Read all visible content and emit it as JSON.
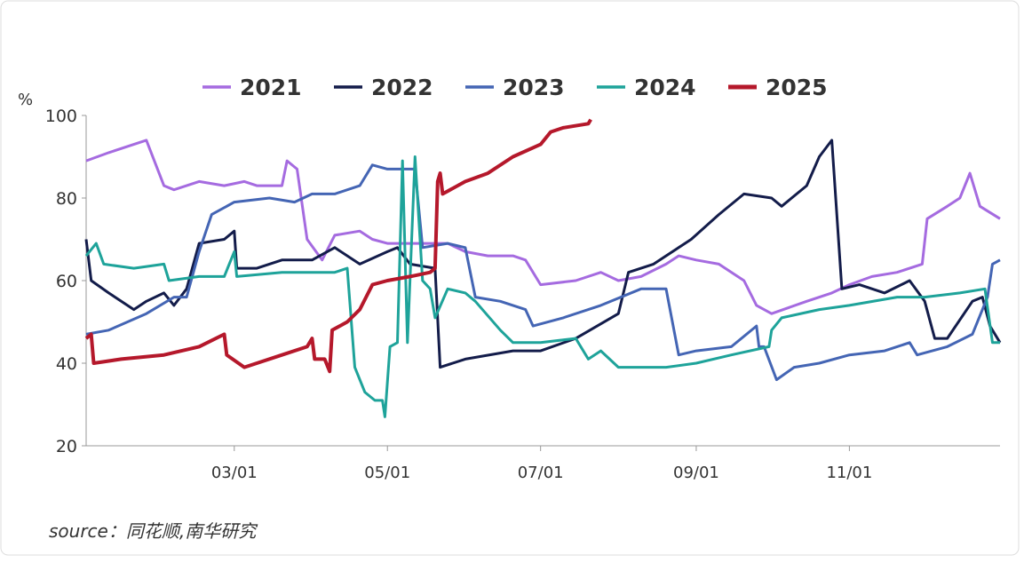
{
  "chart_data": {
    "type": "line",
    "y_unit": "%",
    "source": "source：同花顺,南华研究",
    "ylim": [
      20,
      100
    ],
    "yticks": [
      20,
      40,
      60,
      80,
      100
    ],
    "xticks": [
      "03/01",
      "05/01",
      "07/01",
      "09/01",
      "11/01"
    ],
    "grid": false,
    "legend": "top",
    "series": [
      {
        "name": "2021",
        "color": "#a56be0",
        "x": [
          "01/01",
          "01/10",
          "01/20",
          "01/25",
          "02/01",
          "02/05",
          "02/15",
          "02/25",
          "03/05",
          "03/10",
          "03/20",
          "03/22",
          "03/26",
          "03/30",
          "04/05",
          "04/10",
          "04/20",
          "04/25",
          "05/01",
          "05/15",
          "05/25",
          "06/01",
          "06/10",
          "06/20",
          "06/25",
          "07/01",
          "07/15",
          "07/25",
          "08/01",
          "08/10",
          "08/20",
          "08/25",
          "09/01",
          "09/10",
          "09/20",
          "09/25",
          "10/01",
          "10/15",
          "10/25",
          "11/01",
          "11/10",
          "11/20",
          "11/30",
          "12/02",
          "12/10",
          "12/15",
          "12/19",
          "12/23",
          "12/31"
        ],
        "values": [
          89,
          91,
          93,
          94,
          83,
          82,
          84,
          83,
          84,
          83,
          83,
          89,
          87,
          70,
          65,
          71,
          72,
          70,
          69,
          69,
          69,
          67,
          66,
          66,
          65,
          59,
          60,
          62,
          60,
          61,
          64,
          66,
          65,
          64,
          60,
          54,
          52,
          55,
          57,
          59,
          61,
          62,
          64,
          75,
          78,
          80,
          86,
          78,
          75
        ]
      },
      {
        "name": "2022",
        "color": "#131c4a",
        "x": [
          "01/01",
          "01/03",
          "01/10",
          "01/20",
          "01/25",
          "02/01",
          "02/05",
          "02/10",
          "02/15",
          "02/25",
          "03/01",
          "03/02",
          "03/10",
          "03/20",
          "04/01",
          "04/10",
          "04/20",
          "05/01",
          "05/05",
          "05/10",
          "05/20",
          "05/22",
          "06/01",
          "06/20",
          "07/01",
          "07/15",
          "08/01",
          "08/05",
          "08/15",
          "08/30",
          "09/10",
          "09/20",
          "10/01",
          "10/05",
          "10/15",
          "10/20",
          "10/25",
          "10/29",
          "11/05",
          "11/15",
          "11/25",
          "12/01",
          "12/05",
          "12/10",
          "12/20",
          "12/24",
          "12/27",
          "12/31"
        ],
        "values": [
          70,
          60,
          57,
          53,
          55,
          57,
          54,
          58,
          69,
          70,
          72,
          63,
          63,
          65,
          65,
          68,
          64,
          67,
          68,
          64,
          63,
          39,
          41,
          43,
          43,
          46,
          52,
          62,
          64,
          70,
          76,
          81,
          80,
          78,
          83,
          90,
          94,
          58,
          59,
          57,
          60,
          55,
          46,
          46,
          55,
          56,
          49,
          45
        ]
      },
      {
        "name": "2023",
        "color": "#4465b4",
        "x": [
          "01/01",
          "01/10",
          "01/25",
          "02/05",
          "02/10",
          "02/15",
          "02/20",
          "03/01",
          "03/15",
          "03/25",
          "04/01",
          "04/10",
          "04/20",
          "04/25",
          "05/01",
          "05/10",
          "05/12",
          "05/15",
          "05/25",
          "06/01",
          "06/05",
          "06/15",
          "06/25",
          "06/28",
          "07/10",
          "07/25",
          "08/10",
          "08/20",
          "08/25",
          "09/01",
          "09/15",
          "09/25",
          "09/26",
          "09/28",
          "10/03",
          "10/10",
          "10/20",
          "11/01",
          "11/15",
          "11/25",
          "11/28",
          "12/10",
          "12/20",
          "12/26",
          "12/28",
          "12/31"
        ],
        "values": [
          47,
          48,
          52,
          56,
          56,
          67,
          76,
          79,
          80,
          79,
          81,
          81,
          83,
          88,
          87,
          87,
          87,
          68,
          69,
          68,
          56,
          55,
          53,
          49,
          51,
          54,
          58,
          58,
          42,
          43,
          44,
          49,
          44,
          44,
          36,
          39,
          40,
          42,
          43,
          45,
          42,
          44,
          47,
          56,
          64,
          65
        ]
      },
      {
        "name": "2024",
        "color": "#1ea39a",
        "x": [
          "01/01",
          "01/05",
          "01/08",
          "01/20",
          "02/01",
          "02/03",
          "02/15",
          "02/25",
          "03/01",
          "03/02",
          "03/20",
          "04/01",
          "04/10",
          "04/15",
          "04/18",
          "04/22",
          "04/26",
          "04/29",
          "04/30",
          "05/02",
          "05/05",
          "05/07",
          "05/09",
          "05/12",
          "05/15",
          "05/18",
          "05/20",
          "05/25",
          "06/01",
          "06/05",
          "06/15",
          "06/20",
          "07/01",
          "07/15",
          "07/20",
          "07/25",
          "08/01",
          "08/20",
          "09/01",
          "09/15",
          "09/30",
          "10/01",
          "10/05",
          "10/20",
          "11/01",
          "11/20",
          "12/01",
          "12/15",
          "12/25",
          "12/28",
          "12/31"
        ],
        "values": [
          66,
          69,
          64,
          63,
          64,
          60,
          61,
          61,
          67,
          61,
          62,
          62,
          62,
          63,
          39,
          33,
          31,
          31,
          27,
          44,
          45,
          89,
          45,
          90,
          60,
          58,
          51,
          58,
          57,
          55,
          48,
          45,
          45,
          46,
          41,
          43,
          39,
          39,
          40,
          42,
          44,
          48,
          51,
          53,
          54,
          56,
          56,
          57,
          58,
          45,
          45
        ]
      },
      {
        "name": "2025",
        "color": "#b5182b",
        "x": [
          "01/01",
          "01/03",
          "01/04",
          "01/15",
          "02/01",
          "02/15",
          "02/25",
          "02/26",
          "03/05",
          "03/10",
          "03/20",
          "03/30",
          "04/01",
          "04/02",
          "04/06",
          "04/08",
          "04/09",
          "04/15",
          "04/20",
          "04/25",
          "05/01",
          "05/10",
          "05/18",
          "05/20",
          "05/21",
          "05/22",
          "05/23",
          "06/01",
          "06/10",
          "06/20",
          "07/01",
          "07/05",
          "07/10",
          "07/20",
          "07/21"
        ],
        "values": [
          46,
          47,
          40,
          41,
          42,
          44,
          47,
          42,
          39,
          40,
          42,
          44,
          46,
          41,
          41,
          38,
          48,
          50,
          53,
          59,
          60,
          61,
          62,
          63,
          84,
          86,
          81,
          84,
          86,
          90,
          93,
          96,
          97,
          98,
          99
        ]
      }
    ]
  }
}
